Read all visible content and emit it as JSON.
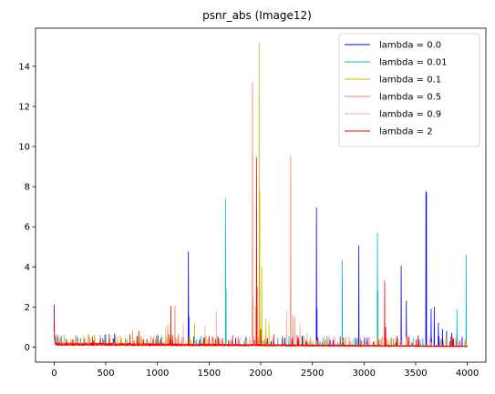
{
  "chart_data": {
    "type": "line",
    "title": "psnr_abs (Image12)",
    "xlabel": "",
    "ylabel": "",
    "xlim": [
      -180,
      4180
    ],
    "ylim": [
      -0.75,
      15.9
    ],
    "x_ticks": [
      0,
      500,
      1000,
      1500,
      2000,
      2500,
      3000,
      3500,
      4000
    ],
    "y_ticks": [
      0,
      2,
      4,
      6,
      8,
      10,
      12,
      14
    ],
    "grid": false,
    "legend_position": "top-right",
    "baseline": {
      "start": 0.15,
      "end": 0.04
    },
    "series": [
      {
        "name": "lambda = 0.0",
        "color": "#0000ff",
        "peaks": [
          [
            0,
            2.1
          ],
          [
            30,
            0.6
          ],
          [
            1300,
            4.75
          ],
          [
            1305,
            1.5
          ],
          [
            2540,
            6.95
          ],
          [
            2545,
            1.9
          ],
          [
            2950,
            5.05
          ],
          [
            3360,
            4.05
          ],
          [
            3410,
            2.3
          ],
          [
            3600,
            7.75
          ],
          [
            3605,
            7.7
          ],
          [
            3650,
            1.9
          ],
          [
            3680,
            2.0
          ],
          [
            3720,
            1.2
          ],
          [
            3760,
            0.9
          ],
          [
            3800,
            0.8
          ],
          [
            3850,
            0.7
          ],
          [
            3900,
            0.6
          ],
          [
            3950,
            0.5
          ]
        ]
      },
      {
        "name": "lambda = 0.01",
        "color": "#00bfbf",
        "peaks": [
          [
            0,
            0.9
          ],
          [
            60,
            0.5
          ],
          [
            1660,
            7.4
          ],
          [
            1665,
            2.9
          ],
          [
            2790,
            4.35
          ],
          [
            3130,
            5.7
          ],
          [
            3135,
            2.8
          ],
          [
            3900,
            1.85
          ],
          [
            3990,
            4.6
          ]
        ]
      },
      {
        "name": "lambda = 0.1",
        "color": "#bfbf00",
        "peaks": [
          [
            0,
            0.6
          ],
          [
            760,
            0.85
          ],
          [
            1360,
            1.2
          ],
          [
            1985,
            15.15
          ],
          [
            1990,
            7.8
          ],
          [
            2010,
            4.0
          ],
          [
            2050,
            1.4
          ],
          [
            2080,
            1.2
          ]
        ]
      },
      {
        "name": "lambda = 0.5",
        "color": "#f08060",
        "peaks": [
          [
            0,
            0.7
          ],
          [
            1100,
            1.1
          ],
          [
            1170,
            2.05
          ],
          [
            1920,
            13.2
          ],
          [
            1925,
            2.5
          ],
          [
            1960,
            5.0
          ],
          [
            2290,
            9.5
          ],
          [
            2310,
            1.6
          ],
          [
            2330,
            1.5
          ]
        ]
      },
      {
        "name": "lambda = 0.9",
        "color": "#f4a6a0",
        "peaks": [
          [
            0,
            0.8
          ],
          [
            1080,
            1.0
          ],
          [
            1250,
            1.2
          ],
          [
            1460,
            1.0
          ],
          [
            1570,
            1.8
          ],
          [
            1950,
            2.0
          ],
          [
            2250,
            1.8
          ],
          [
            2330,
            1.5
          ],
          [
            2380,
            1.2
          ],
          [
            2450,
            0.7
          ]
        ]
      },
      {
        "name": "lambda = 2",
        "color": "#ff0000",
        "peaks": [
          [
            0,
            1.8
          ],
          [
            3,
            1.2
          ],
          [
            820,
            0.8
          ],
          [
            1130,
            2.05
          ],
          [
            1960,
            9.45
          ],
          [
            1965,
            3.0
          ],
          [
            2000,
            0.9
          ],
          [
            3200,
            3.3
          ],
          [
            3210,
            1.0
          ]
        ]
      }
    ]
  }
}
